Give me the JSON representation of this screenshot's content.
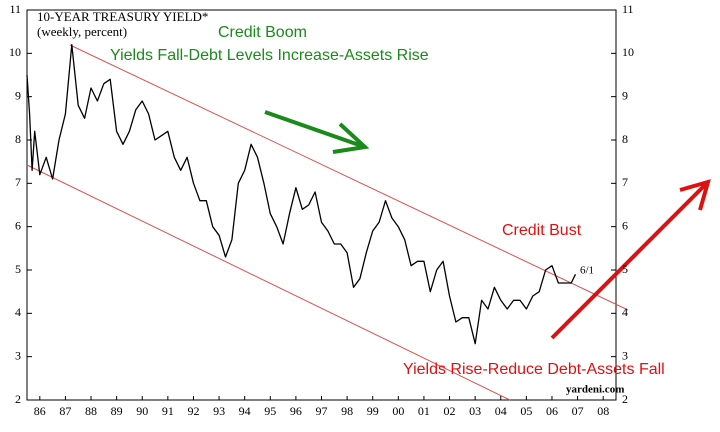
{
  "chart_data": {
    "type": "line",
    "title": "10-YEAR TREASURY YIELD*",
    "subtitle": "(weekly, percent)",
    "annotations": [
      "Credit Boom",
      "Yields Fall-Debt Levels Increase-Assets Rise",
      "Credit Bust",
      "Yields Rise-Reduce Debt-Assets Fall",
      "6/1",
      "yardeni.com"
    ],
    "x": [
      1986.0,
      1986.1,
      1986.2,
      1986.3,
      1986.5,
      1986.75,
      1987.0,
      1987.25,
      1987.5,
      1987.75,
      1988.0,
      1988.25,
      1988.5,
      1988.75,
      1989.0,
      1989.25,
      1989.5,
      1989.75,
      1990.0,
      1990.25,
      1990.5,
      1990.75,
      1991.0,
      1991.25,
      1991.5,
      1991.75,
      1992.0,
      1992.25,
      1992.5,
      1992.75,
      1993.0,
      1993.25,
      1993.5,
      1993.75,
      1994.0,
      1994.25,
      1994.5,
      1994.75,
      1995.0,
      1995.25,
      1995.5,
      1995.75,
      1996.0,
      1996.25,
      1996.5,
      1996.75,
      1997.0,
      1997.25,
      1997.5,
      1997.75,
      1998.0,
      1998.25,
      1998.5,
      1998.75,
      1999.0,
      1999.25,
      1999.5,
      1999.75,
      2000.0,
      2000.25,
      2000.5,
      2000.75,
      2001.0,
      2001.25,
      2001.5,
      2001.75,
      2002.0,
      2002.25,
      2002.5,
      2002.75,
      2003.0,
      2003.25,
      2003.5,
      2003.75,
      2004.0,
      2004.25,
      2004.5,
      2004.75,
      2005.0,
      2005.25,
      2005.5,
      2005.75,
      2006.0,
      2006.25,
      2006.5,
      2006.75,
      2007.0,
      2007.25,
      2007.42
    ],
    "series": [
      {
        "name": "10-Year Treasury Yield",
        "color": "#000000",
        "values": [
          9.5,
          8.6,
          7.3,
          8.2,
          7.2,
          7.6,
          7.1,
          8.0,
          8.6,
          10.2,
          8.8,
          8.5,
          9.2,
          8.9,
          9.3,
          9.4,
          8.2,
          7.9,
          8.2,
          8.7,
          8.9,
          8.6,
          8.0,
          8.1,
          8.2,
          7.6,
          7.3,
          7.6,
          7.0,
          6.6,
          6.6,
          6.0,
          5.8,
          5.3,
          5.7,
          7.0,
          7.3,
          7.9,
          7.6,
          7.0,
          6.3,
          6.0,
          5.6,
          6.3,
          6.9,
          6.4,
          6.5,
          6.8,
          6.1,
          5.9,
          5.6,
          5.6,
          5.4,
          4.6,
          4.8,
          5.4,
          5.9,
          6.1,
          6.6,
          6.2,
          6.0,
          5.7,
          5.1,
          5.2,
          5.2,
          4.5,
          5.0,
          5.2,
          4.4,
          3.8,
          3.9,
          3.9,
          3.3,
          4.3,
          4.1,
          4.6,
          4.3,
          4.1,
          4.3,
          4.3,
          4.1,
          4.4,
          4.5,
          5.0,
          5.1,
          4.7,
          4.7,
          4.7,
          4.9
        ]
      }
    ],
    "xlim": [
      1986,
      2009
    ],
    "xticks": [
      {
        "value": 1986.5,
        "label": "86"
      },
      {
        "value": 1987.5,
        "label": "87"
      },
      {
        "value": 1988.5,
        "label": "88"
      },
      {
        "value": 1989.5,
        "label": "89"
      },
      {
        "value": 1990.5,
        "label": "90"
      },
      {
        "value": 1991.5,
        "label": "91"
      },
      {
        "value": 1992.5,
        "label": "92"
      },
      {
        "value": 1993.5,
        "label": "93"
      },
      {
        "value": 1994.5,
        "label": "94"
      },
      {
        "value": 1995.5,
        "label": "95"
      },
      {
        "value": 1996.5,
        "label": "96"
      },
      {
        "value": 1997.5,
        "label": "97"
      },
      {
        "value": 1998.5,
        "label": "98"
      },
      {
        "value": 1999.5,
        "label": "99"
      },
      {
        "value": 2000.5,
        "label": "00"
      },
      {
        "value": 2001.5,
        "label": "01"
      },
      {
        "value": 2002.5,
        "label": "02"
      },
      {
        "value": 2003.5,
        "label": "03"
      },
      {
        "value": 2004.5,
        "label": "04"
      },
      {
        "value": 2005.5,
        "label": "05"
      },
      {
        "value": 2006.5,
        "label": "06"
      },
      {
        "value": 2007.5,
        "label": "07"
      },
      {
        "value": 2008.5,
        "label": "08"
      }
    ],
    "ylim": [
      2,
      11
    ],
    "yticks": [
      2,
      3,
      4,
      5,
      6,
      7,
      8,
      9,
      10,
      11
    ],
    "grid": false
  }
}
